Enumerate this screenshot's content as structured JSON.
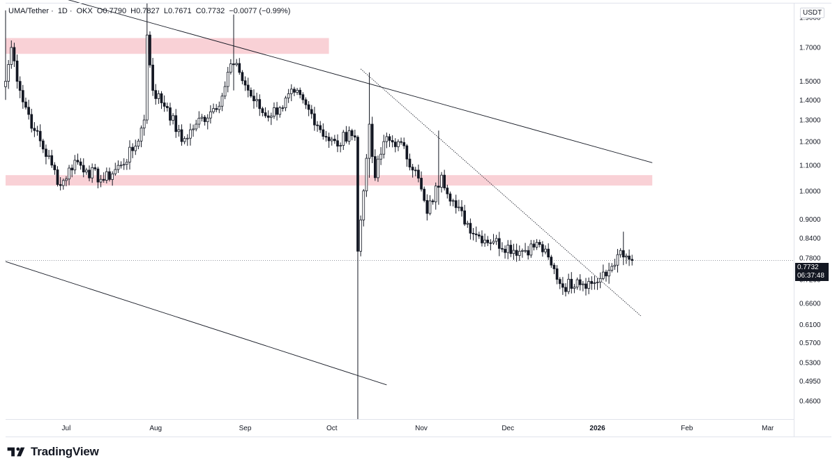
{
  "header": {
    "symbol": "UMA/Tether",
    "interval": "1D",
    "exchange": "OKX",
    "open_label": "O0.7790",
    "high_label": "H0.7827",
    "low_label": "L0.7671",
    "close_label": "C0.7732",
    "change_label": "−0.0077 (−0.99%)",
    "separator": "·"
  },
  "currency_label": "USDT",
  "last_price": {
    "price": "0.7732",
    "countdown": "06:37:48"
  },
  "brand": {
    "name": "TradingView"
  },
  "colors": {
    "up": "#ffffff",
    "down": "#131722",
    "zone": "#f8c9cf",
    "grid_border": "#e0e3eb",
    "trendline": "#131722"
  },
  "chart_data": {
    "type": "candlestick",
    "title": "UMA/Tether · 1D · OKX",
    "y_scale": "log",
    "ylim": [
      0.43,
      2.0
    ],
    "y_ticks": [
      "1.9000",
      "1.7000",
      "1.5000",
      "1.4000",
      "1.3000",
      "1.2000",
      "1.1000",
      "1.0000",
      "0.9000",
      "0.8400",
      "0.7800",
      "0.7200",
      "0.6600",
      "0.6100",
      "0.5700",
      "0.5300",
      "0.4950",
      "0.4600"
    ],
    "x_ticks": [
      "Jul",
      "Aug",
      "Sep",
      "Oct",
      "Nov",
      "Dec",
      "2026",
      "Feb",
      "Mar"
    ],
    "x_tick_dates": [
      "2025-07-01",
      "2025-08-01",
      "2025-09-01",
      "2025-10-01",
      "2025-11-01",
      "2025-12-01",
      "2026-01-01",
      "2026-02-01",
      "2026-03-01"
    ],
    "x_range": [
      "2025-06-10",
      "2026-03-10"
    ],
    "resistance_zones": [
      {
        "from": "2025-06-10",
        "to": "2025-09-30",
        "low": 1.66,
        "high": 1.76
      },
      {
        "from": "2025-06-10",
        "to": "2026-01-20",
        "low": 1.02,
        "high": 1.06
      }
    ],
    "trendlines": [
      {
        "style": "solid",
        "points": [
          [
            "2025-06-28",
            2.05
          ],
          [
            "2026-01-20",
            1.11
          ]
        ]
      },
      {
        "style": "solid",
        "points": [
          [
            "2025-06-10",
            0.77
          ],
          [
            "2025-10-20",
            0.488
          ]
        ]
      },
      {
        "style": "dotted",
        "points": [
          [
            "2025-10-11",
            1.57
          ],
          [
            "2026-01-16",
            0.63
          ]
        ]
      }
    ],
    "price_line": 0.7732,
    "anchors": [
      [
        "2025-06-10",
        1.5
      ],
      [
        "2025-06-12",
        1.7
      ],
      [
        "2025-06-15",
        1.45
      ],
      [
        "2025-06-20",
        1.25
      ],
      [
        "2025-06-26",
        1.1
      ],
      [
        "2025-06-29",
        1.02
      ],
      [
        "2025-07-04",
        1.12
      ],
      [
        "2025-07-08",
        1.08
      ],
      [
        "2025-07-14",
        1.04
      ],
      [
        "2025-07-20",
        1.1
      ],
      [
        "2025-07-25",
        1.18
      ],
      [
        "2025-07-28",
        1.3
      ],
      [
        "2025-07-29",
        1.78
      ],
      [
        "2025-07-31",
        1.45
      ],
      [
        "2025-08-05",
        1.36
      ],
      [
        "2025-08-10",
        1.2
      ],
      [
        "2025-08-15",
        1.28
      ],
      [
        "2025-08-20",
        1.34
      ],
      [
        "2025-08-24",
        1.42
      ],
      [
        "2025-08-27",
        1.6
      ],
      [
        "2025-08-30",
        1.55
      ],
      [
        "2025-09-03",
        1.42
      ],
      [
        "2025-09-08",
        1.32
      ],
      [
        "2025-09-13",
        1.36
      ],
      [
        "2025-09-18",
        1.44
      ],
      [
        "2025-09-24",
        1.33
      ],
      [
        "2025-09-29",
        1.22
      ],
      [
        "2025-10-03",
        1.18
      ],
      [
        "2025-10-07",
        1.25
      ],
      [
        "2025-10-09",
        1.22
      ],
      [
        "2025-10-10",
        0.8
      ],
      [
        "2025-10-12",
        1.0
      ],
      [
        "2025-10-14",
        1.28
      ],
      [
        "2025-10-16",
        1.05
      ],
      [
        "2025-10-19",
        1.2
      ],
      [
        "2025-10-24",
        1.2
      ],
      [
        "2025-10-30",
        1.08
      ],
      [
        "2025-11-03",
        0.92
      ],
      [
        "2025-11-08",
        1.06
      ],
      [
        "2025-11-13",
        0.94
      ],
      [
        "2025-11-20",
        0.85
      ],
      [
        "2025-11-26",
        0.83
      ],
      [
        "2025-12-05",
        0.8
      ],
      [
        "2025-12-12",
        0.82
      ],
      [
        "2025-12-16",
        0.76
      ],
      [
        "2025-12-20",
        0.7
      ],
      [
        "2025-12-25",
        0.72
      ],
      [
        "2025-12-30",
        0.71
      ],
      [
        "2026-01-04",
        0.73
      ],
      [
        "2026-01-08",
        0.79
      ],
      [
        "2026-01-10",
        0.783
      ],
      [
        "2026-01-13",
        0.7732
      ]
    ],
    "wick_scale": 0.022,
    "special_wicks": [
      [
        "2025-06-10",
        1.95,
        1.4
      ],
      [
        "2025-07-29",
        2.0,
        1.35
      ],
      [
        "2025-08-28",
        1.92,
        1.45
      ],
      [
        "2025-10-10",
        1.2,
        0.43
      ],
      [
        "2025-10-14",
        1.55,
        1.05
      ],
      [
        "2025-11-07",
        1.25,
        0.95
      ],
      [
        "2026-01-10",
        0.86,
        0.76
      ]
    ]
  }
}
